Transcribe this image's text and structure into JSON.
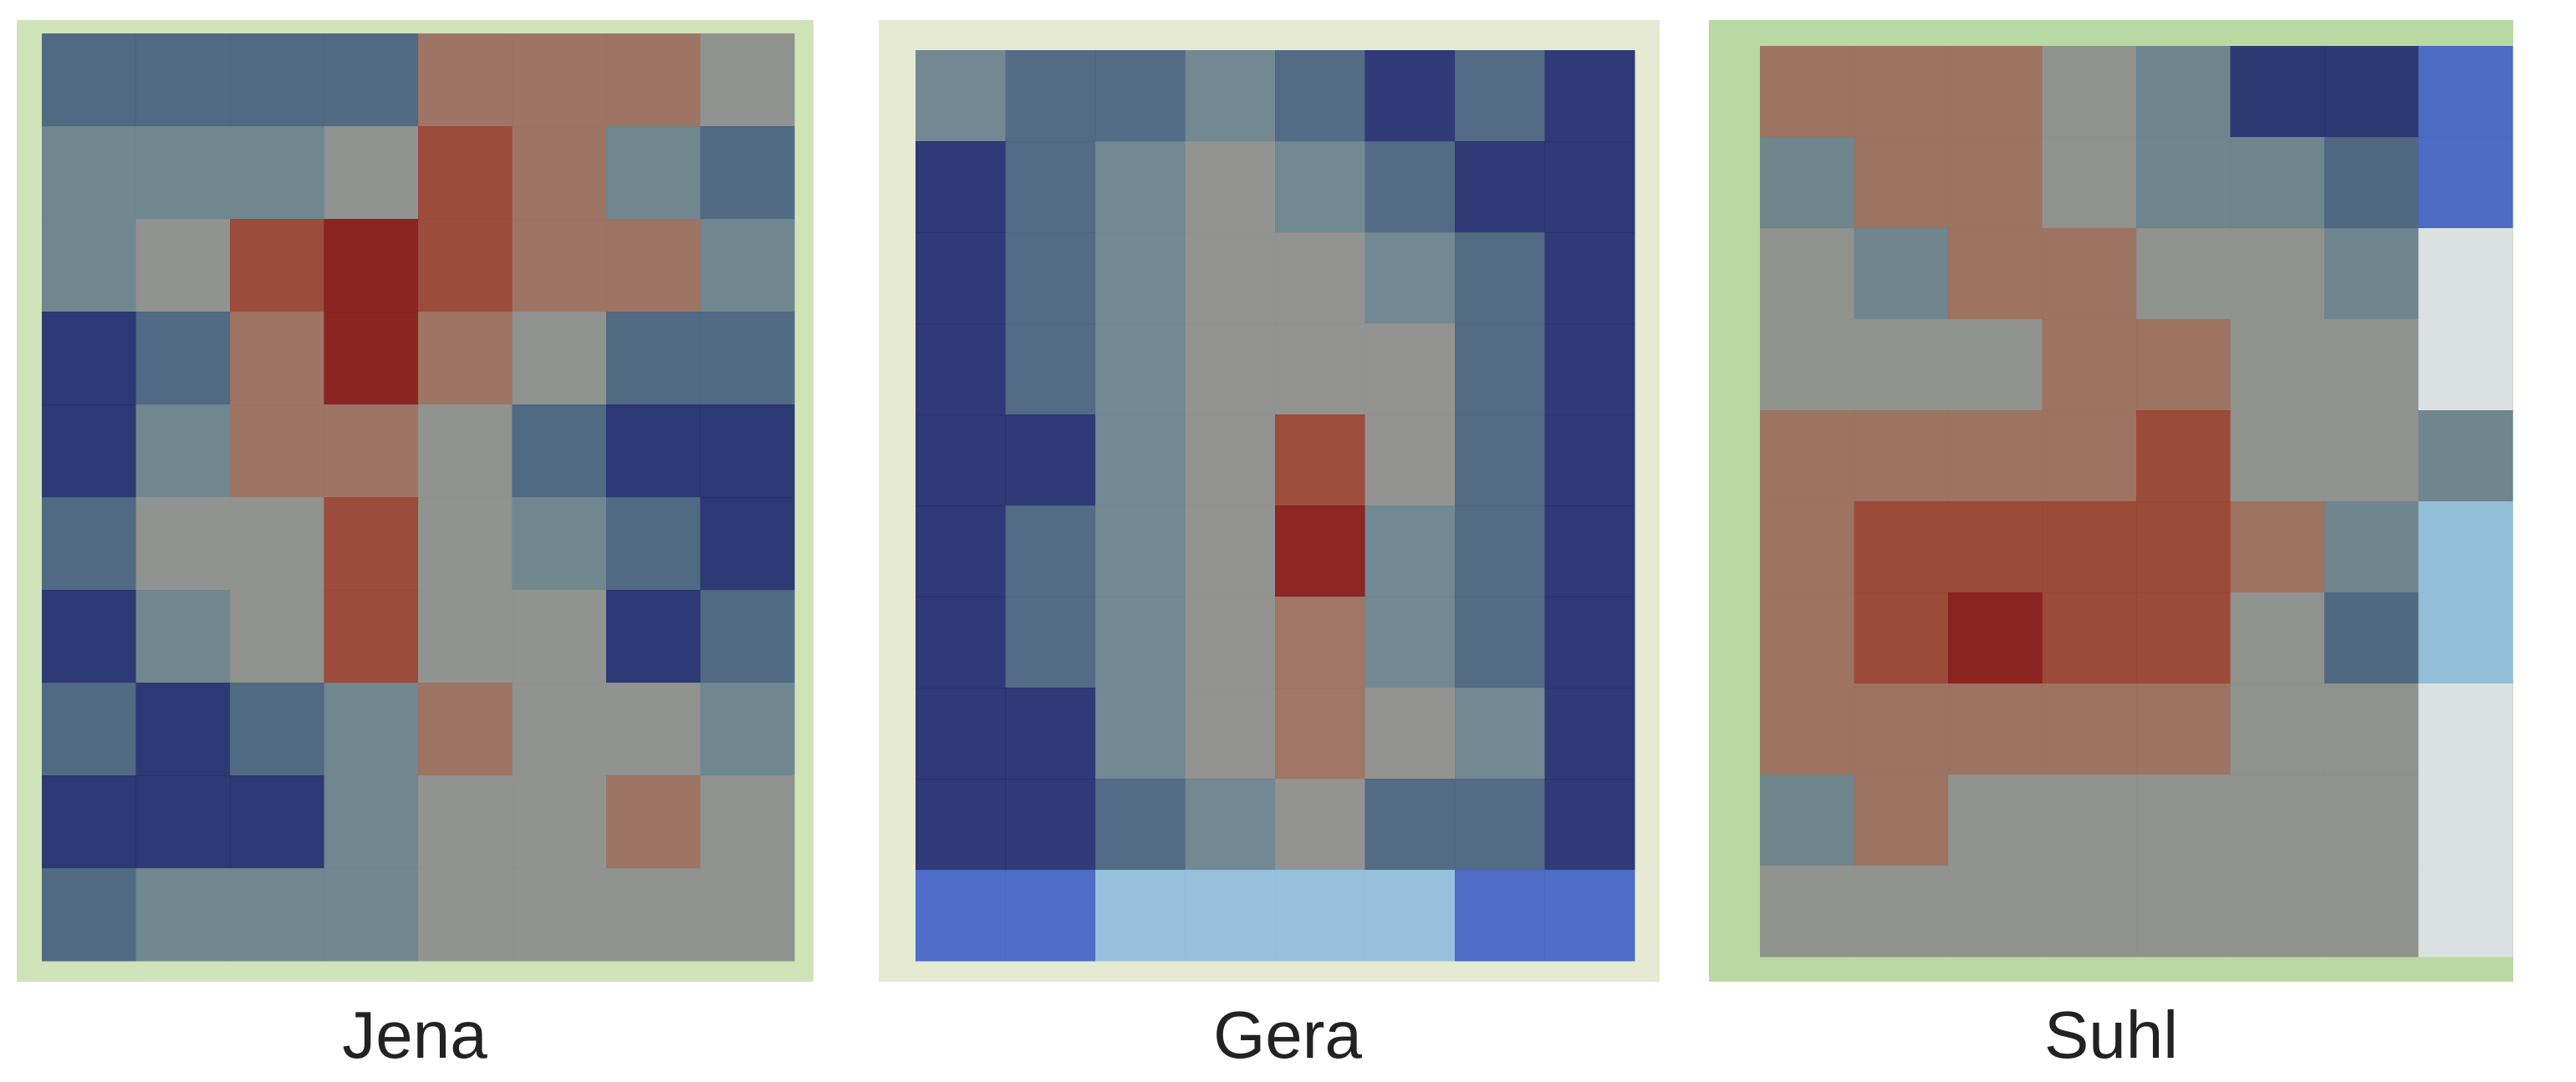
{
  "panels": [
    {
      "label": "Jena"
    },
    {
      "label": "Gera"
    },
    {
      "label": "Suhl"
    }
  ]
}
